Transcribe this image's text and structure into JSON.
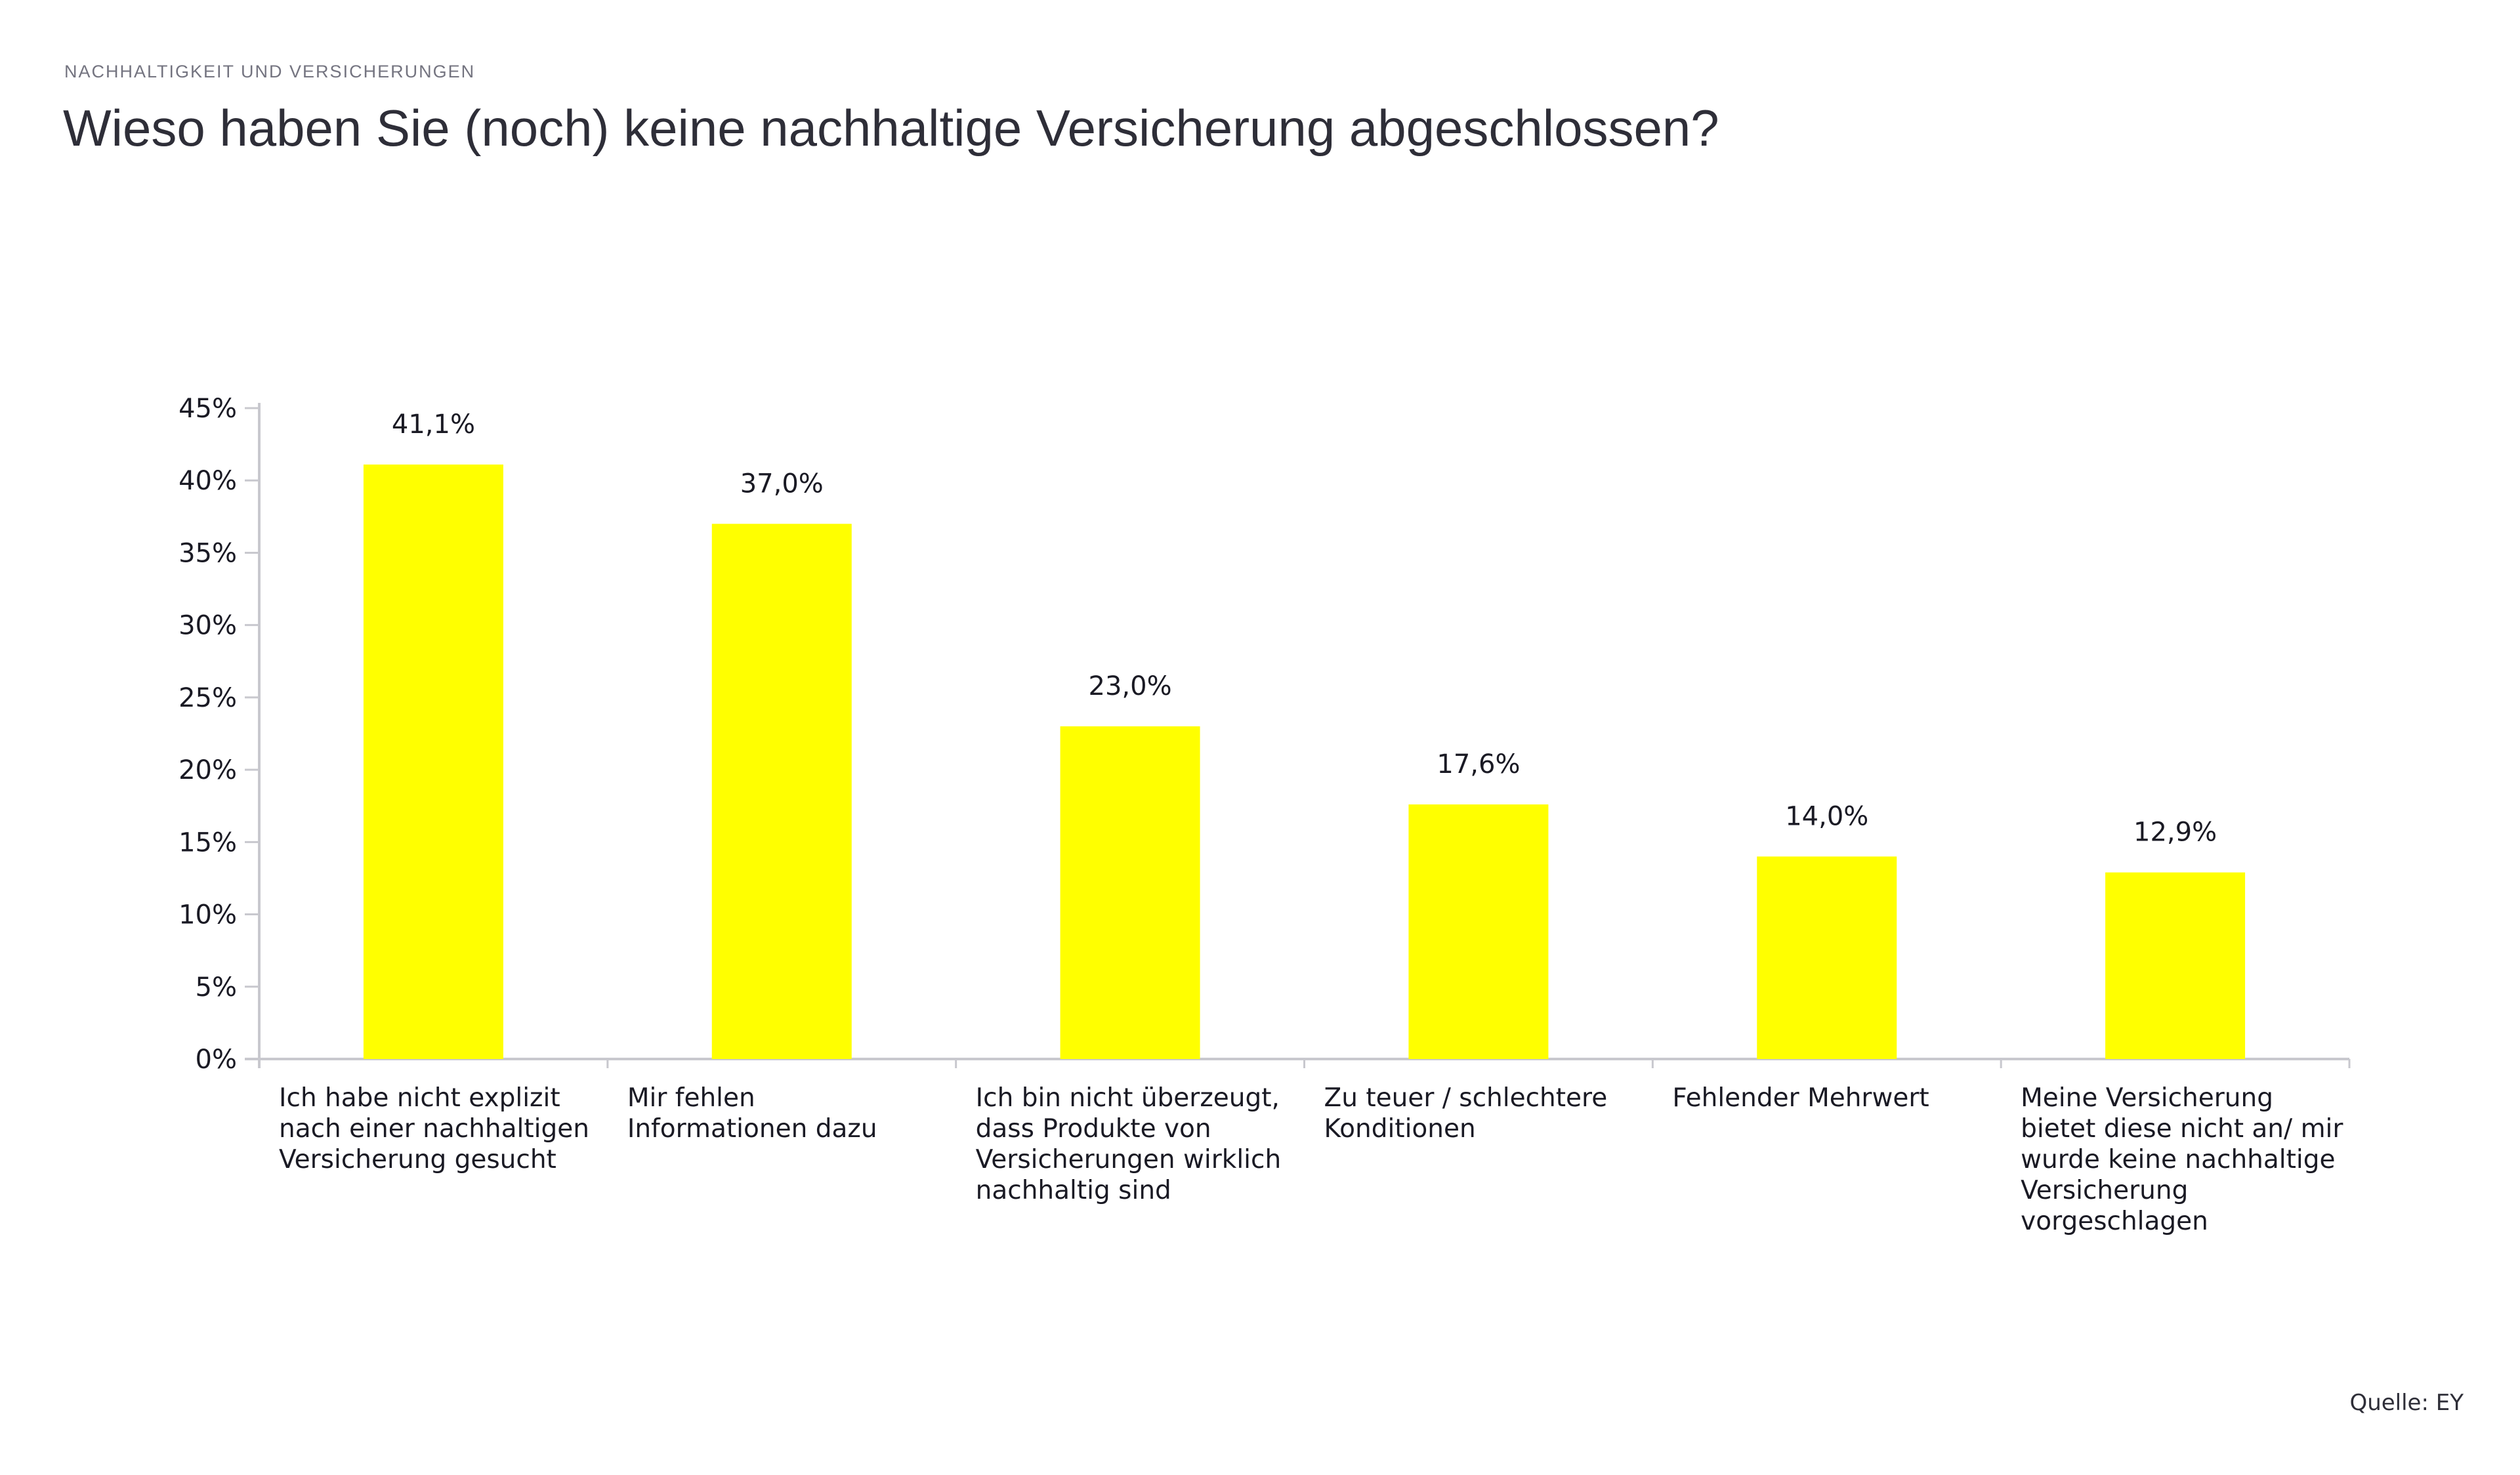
{
  "header": {
    "kicker": "NACHHALTIGKEIT UND VERSICHERUNGEN",
    "title": "Wieso haben Sie (noch) keine nachhaltige Versicherung abgeschlossen?"
  },
  "footer": {
    "source": "Quelle: EY"
  },
  "chart_data": {
    "type": "bar",
    "title": "Wieso haben Sie (noch) keine nachhaltige Versicherung abgeschlossen?",
    "categories": [
      "Ich habe nicht explizit nach einer nachhaltigen Versicherung gesucht",
      "Mir fehlen Informationen dazu",
      "Ich bin nicht überzeugt, dass Produkte von Versicherungen wirklich nachhaltig sind",
      "Zu teuer / schlechtere Konditionen",
      "Fehlender Mehrwert",
      "Meine Versicherung bietet diese nicht an/ mir wurde keine nachhaltige Versicherung vorgeschlagen"
    ],
    "category_lines": [
      [
        "Ich habe nicht explizit",
        "nach einer nachhaltigen",
        "Versicherung gesucht"
      ],
      [
        "Mir fehlen",
        "Informationen dazu"
      ],
      [
        "Ich bin nicht überzeugt,",
        "dass Produkte von",
        "Versicherungen wirklich",
        "nachhaltig sind"
      ],
      [
        "Zu teuer / schlechtere",
        "Konditionen"
      ],
      [
        "Fehlender Mehrwert"
      ],
      [
        "Meine Versicherung",
        "bietet diese nicht an/ mir",
        "wurde keine nachhaltige",
        "Versicherung",
        "vorgeschlagen"
      ]
    ],
    "values": [
      41.1,
      37.0,
      23.0,
      17.6,
      14.0,
      12.9
    ],
    "data_labels": [
      "41,1%",
      "37,0%",
      "23,0%",
      "17,6%",
      "14,0%",
      "12,9%"
    ],
    "ylim": [
      0,
      45
    ],
    "yticks": [
      0,
      5,
      10,
      15,
      20,
      25,
      30,
      35,
      40,
      45
    ],
    "ytick_labels": [
      "0%",
      "5%",
      "10%",
      "15%",
      "20%",
      "25%",
      "30%",
      "35%",
      "40%",
      "45%"
    ],
    "xlabel": "",
    "ylabel": "",
    "grid": false,
    "legend": "none",
    "colors": {
      "bar": "#FFFF00",
      "axis": "#C8C8CE"
    }
  }
}
